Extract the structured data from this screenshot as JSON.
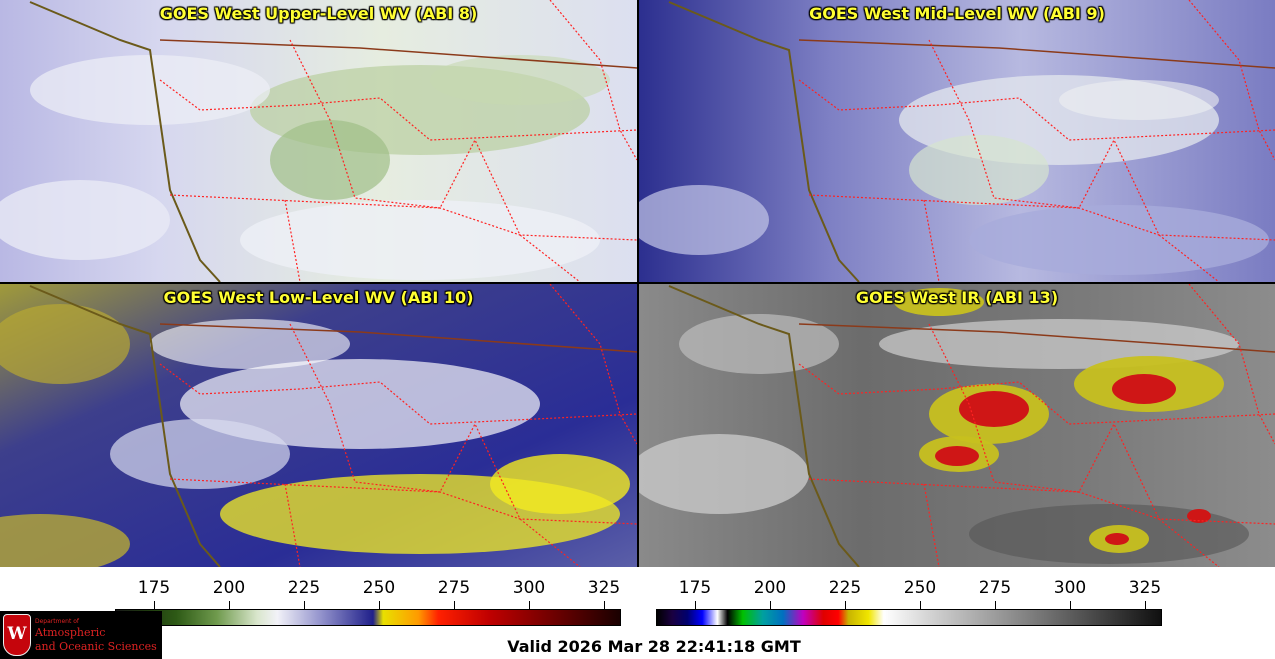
{
  "panels": [
    {
      "title": "GOES West Upper-Level WV (ABI 8)"
    },
    {
      "title": "GOES West Mid-Level WV (ABI 9)"
    },
    {
      "title": "GOES West Low-Level WV (ABI 10)"
    },
    {
      "title": "GOES West IR (ABI 13)"
    }
  ],
  "colorbars": {
    "left": {
      "ticks": [
        "175",
        "200",
        "225",
        "250",
        "275",
        "300",
        "325"
      ]
    },
    "right": {
      "ticks": [
        "175",
        "200",
        "225",
        "250",
        "275",
        "300",
        "325"
      ]
    }
  },
  "logo": {
    "crest_letter": "W",
    "line1": "Department of",
    "line2": "Atmospheric",
    "line3": "and Oceanic Sciences"
  },
  "valid_time": "Valid 2026 Mar 28 22:41:18 GMT",
  "colors": {
    "title_yellow": "#ffff33",
    "border_red": "#ff2222",
    "coast_olive": "#6b5a1a"
  }
}
